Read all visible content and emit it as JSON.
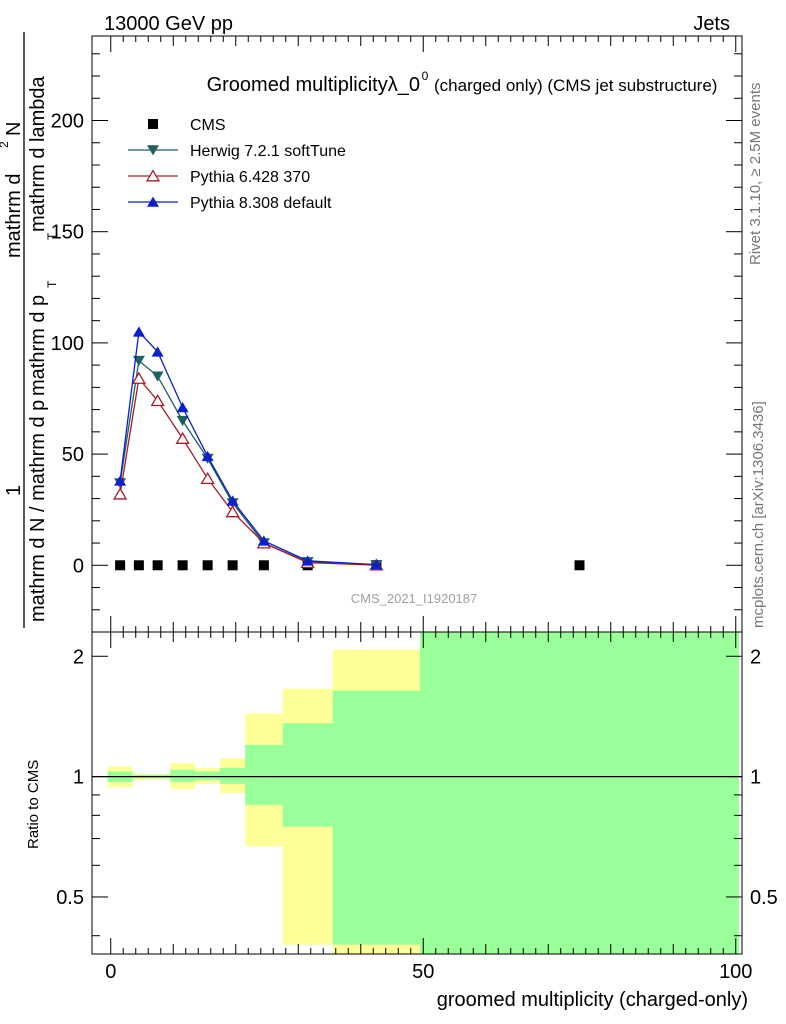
{
  "header": {
    "left": "13000 GeV pp",
    "right": "Jets"
  },
  "side_labels": {
    "rivet": "Rivet 3.1.10, ≥ 2.5M events",
    "mcplots": "mcplots.cern.ch [arXiv:1306.3436]"
  },
  "chart_data": [
    {
      "type": "line",
      "title": "Groomed multiplicityλ_0",
      "title_sup": "0",
      "subtitle": "(charged only) (CMS jet substructure)",
      "watermark": "CMS_2021_I1920187",
      "ylabel_parts": [
        "1",
        "mathrm d N / mathrm d p",
        "T",
        "mathrm d p",
        "T",
        "mathrm d lambda",
        "mathrm d",
        "2",
        "N"
      ],
      "xlim": [
        -3,
        101
      ],
      "ylim": [
        -30,
        238
      ],
      "yticks": [
        0,
        50,
        100,
        150,
        200
      ],
      "legend_position": "top-left",
      "series": [
        {
          "name": "CMS",
          "marker": "square",
          "color": "#000000",
          "x": [
            1.5,
            4.5,
            7.5,
            11.5,
            15.5,
            19.5,
            24.5,
            31.5,
            42.5,
            75
          ],
          "values": [
            0,
            0,
            0,
            0,
            0,
            0,
            0,
            0,
            0,
            0
          ]
        },
        {
          "name": "Herwig 7.2.1 softTune",
          "marker": "triangle-down",
          "color": "#1f6060",
          "x": [
            1.5,
            4.5,
            7.5,
            11.5,
            15.5,
            19.5,
            24.5,
            31.5,
            42.5
          ],
          "values": [
            37,
            92,
            85,
            65,
            48,
            28,
            10,
            1.5,
            0.2
          ]
        },
        {
          "name": "Pythia 6.428 370",
          "marker": "triangle-up-open",
          "color": "#aa1a2a",
          "x": [
            1.5,
            4.5,
            7.5,
            11.5,
            15.5,
            19.5,
            24.5,
            31.5,
            42.5
          ],
          "values": [
            32,
            84,
            74,
            57,
            39,
            24,
            10,
            1.2,
            0.1
          ]
        },
        {
          "name": "Pythia 8.308 default",
          "marker": "triangle-up",
          "color": "#0b1fcc",
          "x": [
            1.5,
            4.5,
            7.5,
            11.5,
            15.5,
            19.5,
            24.5,
            31.5,
            42.5
          ],
          "values": [
            38,
            105,
            96,
            71,
            49,
            29,
            11,
            2,
            0.3
          ]
        }
      ]
    },
    {
      "type": "area",
      "ylabel": "Ratio to CMS",
      "xlabel": "groomed multiplicity (charged-only)",
      "xlim": [
        -3,
        101
      ],
      "ylim": [
        0.36,
        2.3
      ],
      "xticks": [
        0,
        50,
        100
      ],
      "yticks": [
        0.5,
        1,
        2
      ],
      "reference": 1,
      "bins": [
        {
          "lo": -0.5,
          "hi": 3.5,
          "yellow": [
            0.94,
            1.06
          ],
          "green": [
            0.97,
            1.03
          ]
        },
        {
          "lo": 3.5,
          "hi": 5.5,
          "yellow": [
            0.98,
            1.02
          ],
          "green": [
            0.99,
            1.01
          ]
        },
        {
          "lo": 5.5,
          "hi": 9.5,
          "yellow": [
            0.985,
            1.015
          ],
          "green": [
            0.99,
            1.01
          ]
        },
        {
          "lo": 9.5,
          "hi": 13.5,
          "yellow": [
            0.93,
            1.08
          ],
          "green": [
            0.97,
            1.04
          ]
        },
        {
          "lo": 13.5,
          "hi": 17.5,
          "yellow": [
            0.96,
            1.05
          ],
          "green": [
            0.98,
            1.03
          ]
        },
        {
          "lo": 17.5,
          "hi": 21.5,
          "yellow": [
            0.91,
            1.11
          ],
          "green": [
            0.96,
            1.05
          ]
        },
        {
          "lo": 21.5,
          "hi": 27.5,
          "yellow": [
            0.67,
            1.44
          ],
          "green": [
            0.85,
            1.2
          ]
        },
        {
          "lo": 27.5,
          "hi": 35.5,
          "yellow": [
            0.38,
            1.66
          ],
          "green": [
            0.75,
            1.36
          ]
        },
        {
          "lo": 35.5,
          "hi": 49.5,
          "yellow": [
            0.36,
            2.08
          ],
          "green": [
            0.38,
            1.64
          ]
        },
        {
          "lo": 49.5,
          "hi": 100.5,
          "yellow": [
            0.36,
            2.3
          ],
          "green": [
            0.36,
            2.3
          ]
        }
      ]
    }
  ]
}
